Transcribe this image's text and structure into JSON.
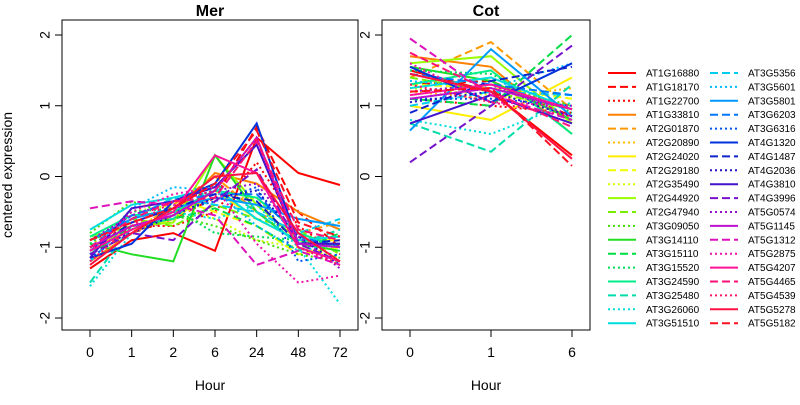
{
  "chart_data": [
    {
      "type": "line",
      "title": "Mer",
      "xlabel": "Hour",
      "ylabel": "centered expression",
      "categories": [
        "0",
        "1",
        "2",
        "6",
        "24",
        "48",
        "72"
      ],
      "ylim": [
        -2,
        2
      ],
      "yticks": [
        "-2",
        "-1",
        "0",
        "1",
        "2"
      ],
      "series": [
        {
          "name": "AT1G16880",
          "color": "#ff0000",
          "dash": "solid",
          "values": [
            -1.3,
            -0.9,
            -0.8,
            -1.05,
            0.55,
            0.05,
            -0.12
          ]
        },
        {
          "name": "AT1G18170",
          "color": "#ff0000",
          "dash": "dashed",
          "values": [
            -1.1,
            -0.8,
            -0.6,
            -0.3,
            0.7,
            -0.5,
            -1.0
          ]
        },
        {
          "name": "AT1G22700",
          "color": "#ff0000",
          "dash": "dotted",
          "values": [
            -0.9,
            -0.7,
            -0.7,
            -0.5,
            0.2,
            -0.7,
            -1.1
          ]
        },
        {
          "name": "AT1G33810",
          "color": "#ff8000",
          "dash": "solid",
          "values": [
            -1.2,
            -0.8,
            -0.55,
            0.05,
            -0.1,
            -0.5,
            -0.75
          ]
        },
        {
          "name": "AT2G01870",
          "color": "#ff9900",
          "dash": "dashed",
          "values": [
            -1.05,
            -0.8,
            -0.4,
            0.0,
            -0.5,
            -0.8,
            -0.65
          ]
        },
        {
          "name": "AT2G20890",
          "color": "#ffbb00",
          "dash": "dotted",
          "values": [
            -0.95,
            -0.7,
            -0.5,
            -0.3,
            -0.3,
            -1.0,
            -1.2
          ]
        },
        {
          "name": "AT2G24020",
          "color": "#ffee00",
          "dash": "solid",
          "values": [
            -1.0,
            -0.75,
            -0.6,
            -0.2,
            -0.6,
            -0.9,
            -0.9
          ]
        },
        {
          "name": "AT2G29180",
          "color": "#eeff00",
          "dash": "dashed",
          "values": [
            -0.9,
            -0.6,
            -0.3,
            -0.5,
            -0.7,
            -1.1,
            -1.0
          ]
        },
        {
          "name": "AT2G35490",
          "color": "#ccff00",
          "dash": "dotted",
          "values": [
            -1.05,
            -0.5,
            -0.4,
            -0.6,
            -0.9,
            -1.0,
            -1.15
          ]
        },
        {
          "name": "AT2G44920",
          "color": "#99ff00",
          "dash": "solid",
          "values": [
            -0.85,
            -0.7,
            -0.65,
            0.3,
            -0.4,
            -0.9,
            -1.0
          ]
        },
        {
          "name": "AT2G47940",
          "color": "#77ee00",
          "dash": "dashed",
          "values": [
            -1.0,
            -0.6,
            -0.7,
            -0.4,
            -0.6,
            -0.75,
            -1.1
          ]
        },
        {
          "name": "AT3G09050",
          "color": "#44dd00",
          "dash": "dotted",
          "values": [
            -0.8,
            -0.35,
            -0.55,
            -0.7,
            -0.9,
            -1.1,
            -1.2
          ]
        },
        {
          "name": "AT3G14110",
          "color": "#22dd22",
          "dash": "solid",
          "values": [
            -0.95,
            -1.1,
            -1.2,
            0.3,
            -0.5,
            -0.95,
            -1.05
          ]
        },
        {
          "name": "AT3G15110",
          "color": "#00dd44",
          "dash": "dashed",
          "values": [
            -1.1,
            -0.7,
            -0.6,
            -0.45,
            -0.7,
            -1.05,
            -0.8
          ]
        },
        {
          "name": "AT3G15520",
          "color": "#00dd55",
          "dash": "dotted",
          "values": [
            -0.95,
            -0.5,
            -0.45,
            -0.8,
            -0.85,
            -0.9,
            -1.15
          ]
        },
        {
          "name": "AT3G24590",
          "color": "#00ee88",
          "dash": "solid",
          "values": [
            -0.85,
            -0.55,
            -0.5,
            -0.2,
            -0.3,
            -0.8,
            -1.0
          ]
        },
        {
          "name": "AT3G25480",
          "color": "#00ddaa",
          "dash": "dashed",
          "values": [
            -1.5,
            -0.7,
            -0.6,
            -0.1,
            -0.5,
            -0.95,
            -0.75
          ]
        },
        {
          "name": "AT3G26060",
          "color": "#00dddd",
          "dash": "dotted",
          "values": [
            -1.55,
            -0.8,
            -0.5,
            -0.6,
            -0.4,
            -1.0,
            -1.8
          ]
        },
        {
          "name": "AT3G51510",
          "color": "#00dddd",
          "dash": "solid",
          "values": [
            -0.75,
            -0.4,
            -0.3,
            -0.15,
            -0.6,
            -0.9,
            -0.85
          ]
        },
        {
          "name": "AT3G5356",
          "color": "#00ccee",
          "dash": "dashed",
          "values": [
            -1.2,
            -0.6,
            -0.3,
            -0.4,
            -0.5,
            -0.8,
            -0.6
          ]
        },
        {
          "name": "AT3G5601",
          "color": "#00bbff",
          "dash": "dotted",
          "values": [
            -1.1,
            -0.45,
            -0.15,
            -0.2,
            -0.7,
            -1.05,
            -0.95
          ]
        },
        {
          "name": "AT3G5801",
          "color": "#0099ff",
          "dash": "solid",
          "values": [
            -0.9,
            -0.6,
            -0.45,
            -0.3,
            -0.4,
            -0.6,
            -0.7
          ]
        },
        {
          "name": "AT3G6203",
          "color": "#0077ff",
          "dash": "dashed",
          "values": [
            -1.0,
            -0.55,
            -0.35,
            -0.25,
            -0.25,
            -0.85,
            -1.0
          ]
        },
        {
          "name": "AT3G6316",
          "color": "#0055ee",
          "dash": "dotted",
          "values": [
            -1.15,
            -0.75,
            -0.5,
            -0.35,
            -0.15,
            -1.2,
            -1.1
          ]
        },
        {
          "name": "AT4G1320",
          "color": "#0033dd",
          "dash": "solid",
          "values": [
            -1.15,
            -0.95,
            -0.35,
            -0.1,
            0.75,
            -0.95,
            -0.95
          ]
        },
        {
          "name": "AT4G1487",
          "color": "#1122cc",
          "dash": "dashed",
          "values": [
            -1.05,
            -0.65,
            -0.45,
            -0.25,
            -0.35,
            -0.95,
            -0.9
          ]
        },
        {
          "name": "AT4G2036",
          "color": "#2211cc",
          "dash": "dotted",
          "values": [
            -1.0,
            -0.8,
            -0.55,
            -0.3,
            -0.2,
            -0.85,
            -1.25
          ]
        },
        {
          "name": "AT4G3810",
          "color": "#4411cc",
          "dash": "solid",
          "values": [
            -1.15,
            -0.45,
            -0.35,
            -0.15,
            0.45,
            -0.95,
            -0.95
          ]
        },
        {
          "name": "AT4G3996",
          "color": "#7711cc",
          "dash": "dashed",
          "values": [
            -1.1,
            -0.8,
            -0.9,
            -0.35,
            0.1,
            -0.95,
            -1.2
          ]
        },
        {
          "name": "AT5G0574",
          "color": "#9911cc",
          "dash": "dotted",
          "values": [
            -0.9,
            -0.55,
            -0.35,
            -0.2,
            -0.1,
            -0.85,
            -1.3
          ]
        },
        {
          "name": "AT5G1145",
          "color": "#bb11cc",
          "dash": "solid",
          "values": [
            -1.0,
            -0.7,
            -0.55,
            -0.2,
            0.55,
            -0.95,
            -1.0
          ]
        },
        {
          "name": "AT5G1312",
          "color": "#dd11bb",
          "dash": "dashed",
          "values": [
            -0.45,
            -0.35,
            -0.4,
            -0.55,
            -1.25,
            -1.05,
            -1.25
          ]
        },
        {
          "name": "AT5G2875",
          "color": "#ee11aa",
          "dash": "dotted",
          "values": [
            -1.05,
            -0.5,
            -0.25,
            -0.15,
            -0.95,
            -1.5,
            -1.4
          ]
        },
        {
          "name": "AT5G4207",
          "color": "#ff1199",
          "dash": "solid",
          "values": [
            -1.05,
            -0.75,
            -0.5,
            0.3,
            0.05,
            -1.0,
            -1.2
          ]
        },
        {
          "name": "AT5G4465",
          "color": "#ff1177",
          "dash": "dashed",
          "values": [
            -1.0,
            -0.6,
            -0.35,
            -0.3,
            0.5,
            -0.75,
            -0.9
          ]
        },
        {
          "name": "AT5G4539",
          "color": "#ff1166",
          "dash": "dotted",
          "values": [
            -1.2,
            -0.7,
            -0.35,
            -0.2,
            0.55,
            -1.0,
            -1.25
          ]
        },
        {
          "name": "AT5G5278",
          "color": "#ff1144",
          "dash": "solid",
          "values": [
            -1.25,
            -0.8,
            -0.45,
            0.0,
            0.05,
            -0.8,
            -1.2
          ]
        },
        {
          "name": "AT5G5182",
          "color": "#ff1122",
          "dash": "dashed",
          "values": [
            -0.9,
            -0.65,
            -0.45,
            -0.1,
            0.65,
            -0.65,
            -0.85
          ]
        }
      ]
    },
    {
      "type": "line",
      "title": "Cot",
      "xlabel": "Hour",
      "categories": [
        "0",
        "1",
        "6"
      ],
      "ylim": [
        -2,
        2
      ],
      "yticks": [
        "-2",
        "-1",
        "0",
        "1",
        "2"
      ],
      "series": [
        {
          "name": "AT1G16880",
          "color": "#ff0000",
          "dash": "solid",
          "values": [
            1.5,
            1.2,
            0.3
          ]
        },
        {
          "name": "AT1G18170",
          "color": "#ff0000",
          "dash": "dashed",
          "values": [
            1.3,
            1.35,
            0.85
          ]
        },
        {
          "name": "AT1G22700",
          "color": "#ff0000",
          "dash": "dotted",
          "values": [
            1.1,
            1.0,
            0.9
          ]
        },
        {
          "name": "AT1G33810",
          "color": "#ff8000",
          "dash": "solid",
          "values": [
            1.7,
            1.55,
            0.6
          ]
        },
        {
          "name": "AT2G01870",
          "color": "#ff9900",
          "dash": "dashed",
          "values": [
            1.4,
            1.9,
            0.95
          ]
        },
        {
          "name": "AT2G20890",
          "color": "#ffbb00",
          "dash": "dotted",
          "values": [
            1.2,
            1.1,
            1.25
          ]
        },
        {
          "name": "AT2G24020",
          "color": "#ffee00",
          "dash": "solid",
          "values": [
            1.0,
            0.8,
            1.4
          ]
        },
        {
          "name": "AT2G29180",
          "color": "#eeff00",
          "dash": "dashed",
          "values": [
            1.3,
            1.25,
            1.1
          ]
        },
        {
          "name": "AT2G35490",
          "color": "#ccff00",
          "dash": "dotted",
          "values": [
            1.25,
            1.15,
            1.0
          ]
        },
        {
          "name": "AT2G44920",
          "color": "#99ff00",
          "dash": "solid",
          "values": [
            1.6,
            1.7,
            0.75
          ]
        },
        {
          "name": "AT2G47940",
          "color": "#77ee00",
          "dash": "dashed",
          "values": [
            1.4,
            1.2,
            0.95
          ]
        },
        {
          "name": "AT3G09050",
          "color": "#44dd00",
          "dash": "dotted",
          "values": [
            1.2,
            1.3,
            1.0
          ]
        },
        {
          "name": "AT3G14110",
          "color": "#22dd22",
          "dash": "solid",
          "values": [
            1.55,
            1.35,
            0.8
          ]
        },
        {
          "name": "AT3G15110",
          "color": "#00dd44",
          "dash": "dashed",
          "values": [
            1.1,
            1.0,
            2.0
          ]
        },
        {
          "name": "AT3G15520",
          "color": "#00dd55",
          "dash": "dotted",
          "values": [
            1.5,
            1.45,
            0.9
          ]
        },
        {
          "name": "AT3G24590",
          "color": "#00ee88",
          "dash": "solid",
          "values": [
            1.3,
            1.5,
            0.6
          ]
        },
        {
          "name": "AT3G25480",
          "color": "#00ddaa",
          "dash": "dashed",
          "values": [
            0.75,
            0.35,
            1.3
          ]
        },
        {
          "name": "AT3G26060",
          "color": "#00dddd",
          "dash": "dotted",
          "values": [
            0.8,
            0.6,
            1.05
          ]
        },
        {
          "name": "AT3G51510",
          "color": "#00dddd",
          "dash": "solid",
          "values": [
            1.25,
            1.4,
            0.95
          ]
        },
        {
          "name": "AT3G5356",
          "color": "#00ccee",
          "dash": "dashed",
          "values": [
            1.0,
            1.2,
            1.15
          ]
        },
        {
          "name": "AT3G5601",
          "color": "#00bbff",
          "dash": "dotted",
          "values": [
            1.35,
            1.25,
            1.6
          ]
        },
        {
          "name": "AT3G5801",
          "color": "#0099ff",
          "dash": "solid",
          "values": [
            0.65,
            1.8,
            0.85
          ]
        },
        {
          "name": "AT3G6203",
          "color": "#0077ff",
          "dash": "dashed",
          "values": [
            1.45,
            1.3,
            1.15
          ]
        },
        {
          "name": "AT3G6316",
          "color": "#0055ee",
          "dash": "dotted",
          "values": [
            1.1,
            1.1,
            1.0
          ]
        },
        {
          "name": "AT4G1320",
          "color": "#0033dd",
          "dash": "solid",
          "values": [
            1.55,
            1.05,
            1.6
          ]
        },
        {
          "name": "AT4G1487",
          "color": "#1122cc",
          "dash": "dashed",
          "values": [
            0.9,
            1.35,
            1.55
          ]
        },
        {
          "name": "AT4G2036",
          "color": "#2211cc",
          "dash": "dotted",
          "values": [
            1.05,
            1.2,
            0.85
          ]
        },
        {
          "name": "AT4G3810",
          "color": "#4411cc",
          "dash": "solid",
          "values": [
            0.75,
            1.15,
            0.75
          ]
        },
        {
          "name": "AT4G3996",
          "color": "#7711cc",
          "dash": "dashed",
          "values": [
            0.2,
            1.0,
            1.85
          ]
        },
        {
          "name": "AT5G0574",
          "color": "#9911cc",
          "dash": "dotted",
          "values": [
            1.2,
            1.3,
            0.85
          ]
        },
        {
          "name": "AT5G1145",
          "color": "#bb11cc",
          "dash": "solid",
          "values": [
            1.1,
            1.25,
            0.95
          ]
        },
        {
          "name": "AT5G1312",
          "color": "#dd11bb",
          "dash": "dashed",
          "values": [
            1.95,
            1.15,
            0.8
          ]
        },
        {
          "name": "AT5G2875",
          "color": "#ee11aa",
          "dash": "dotted",
          "values": [
            1.6,
            1.05,
            1.0
          ]
        },
        {
          "name": "AT5G4207",
          "color": "#ff1199",
          "dash": "solid",
          "values": [
            1.15,
            1.3,
            0.95
          ]
        },
        {
          "name": "AT5G4465",
          "color": "#ff1177",
          "dash": "dashed",
          "values": [
            1.75,
            1.2,
            0.7
          ]
        },
        {
          "name": "AT5G4539",
          "color": "#ff1166",
          "dash": "dotted",
          "values": [
            1.3,
            1.05,
            0.85
          ]
        },
        {
          "name": "AT5G5278",
          "color": "#ff1144",
          "dash": "solid",
          "values": [
            1.45,
            1.2,
            0.25
          ]
        },
        {
          "name": "AT5G5182",
          "color": "#ff1122",
          "dash": "dashed",
          "values": [
            1.2,
            1.25,
            0.15
          ]
        }
      ]
    }
  ]
}
